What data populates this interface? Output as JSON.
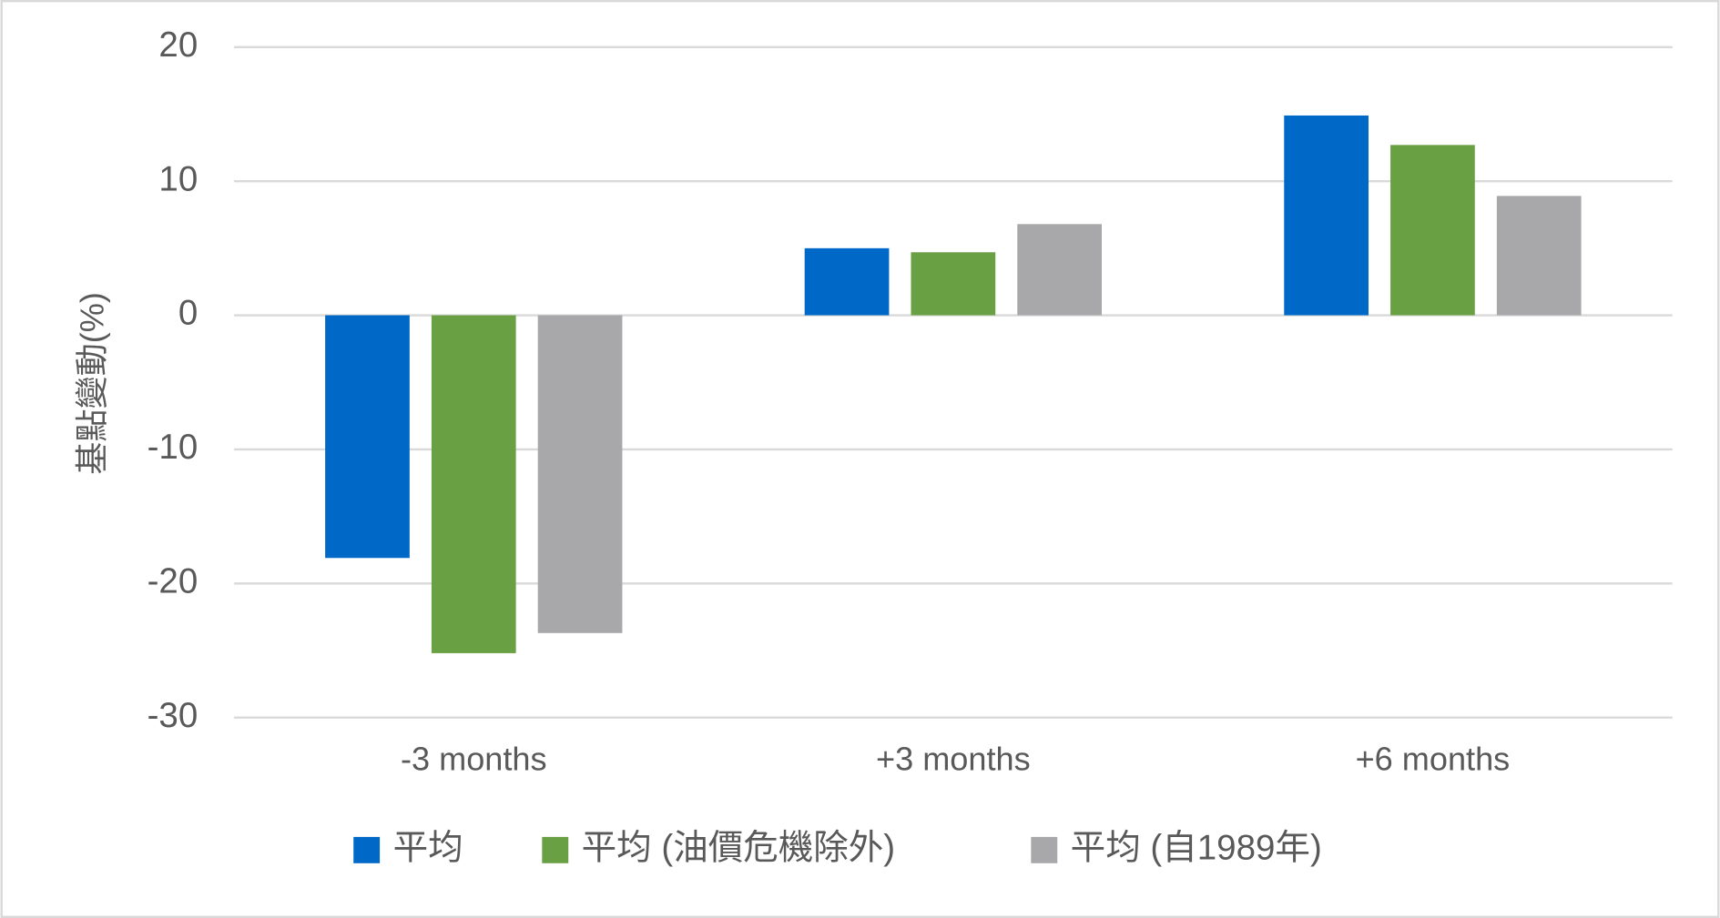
{
  "chart_data": {
    "type": "bar",
    "y_label": "基點變動(%)",
    "categories": [
      "-3 months",
      "+3 months",
      "+6 months"
    ],
    "series": [
      {
        "name": "平均",
        "color": "#0068c6",
        "values": [
          -18.1,
          5.0,
          14.9
        ]
      },
      {
        "name": "平均 (油價危機除外)",
        "color": "#6aa044",
        "values": [
          -25.2,
          4.7,
          12.7
        ]
      },
      {
        "name": "平均 (自1989年)",
        "color": "#a8a7aa",
        "values": [
          -23.7,
          6.8,
          8.9
        ]
      }
    ],
    "ylim": [
      -30,
      20
    ],
    "yticks": [
      -30,
      -20,
      -10,
      0,
      10,
      20
    ],
    "grid": true,
    "legend": "bottom"
  }
}
